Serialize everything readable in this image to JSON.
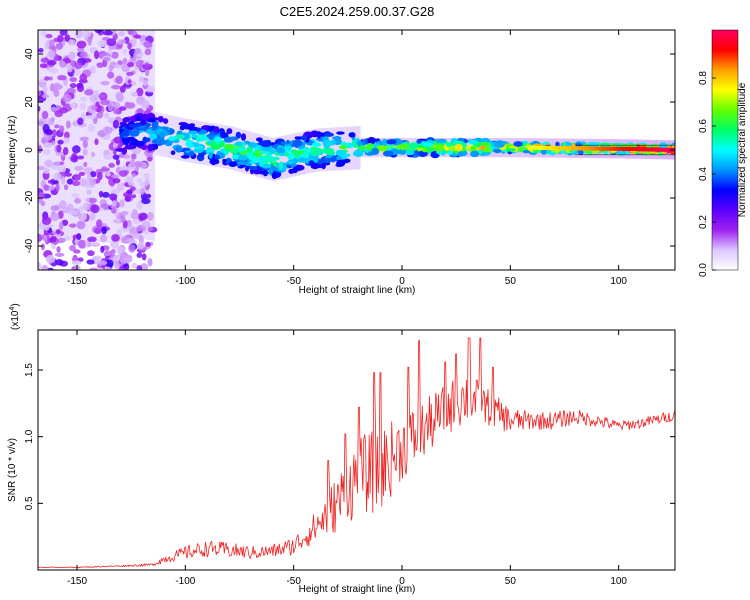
{
  "title": "C2E5.2024.259.00.37.G28",
  "chart_data": [
    {
      "type": "heatmap",
      "xlabel": "Height of straight line (km)",
      "ylabel": "Frequency (Hz)",
      "xlim": [
        -168,
        126
      ],
      "ylim": [
        -50,
        50
      ],
      "x_ticks": [
        -150,
        -100,
        -50,
        0,
        50,
        100
      ],
      "y_ticks": [
        -40,
        -20,
        0,
        20,
        40
      ],
      "grid": false,
      "colorbar": {
        "label": "Normalized spectral amplitude",
        "range": [
          0,
          1
        ],
        "ticks": [
          "0.0",
          "0.2",
          "0.4",
          "0.6",
          "0.8"
        ],
        "colors": [
          "#ffffff",
          "#dcc6ff",
          "#a020f0",
          "#5a00ff",
          "#0000ff",
          "#0096ff",
          "#00ffff",
          "#00ff64",
          "#64ff00",
          "#ffff00",
          "#ffa000",
          "#ff0000",
          "#ff0064"
        ]
      },
      "trend": {
        "x": [
          -168,
          -130,
          -120,
          -100,
          -80,
          -60,
          -40,
          -20,
          0,
          20,
          50,
          100,
          126
        ],
        "center_freq_hz": [
          8,
          6,
          8,
          4,
          1,
          -4,
          0,
          1,
          1,
          1,
          1,
          0.5,
          0
        ],
        "peak_amplitude": [
          0.25,
          0.25,
          0.3,
          0.45,
          0.45,
          0.5,
          0.45,
          0.5,
          0.55,
          0.65,
          0.7,
          0.9,
          1.0
        ]
      }
    },
    {
      "type": "line",
      "xlabel": "Height of straight line (km)",
      "ylabel": "SNR (10 * v/v)",
      "y_multiplier": "(x10^4)",
      "y_multiplier_parts": [
        "(x10",
        "4",
        ")"
      ],
      "xlim": [
        -168,
        126
      ],
      "ylim": [
        0,
        1.8
      ],
      "x_ticks": [
        -150,
        -100,
        -50,
        0,
        50,
        100
      ],
      "y_ticks": [
        "0.5",
        "1.0",
        "1.5"
      ],
      "y_tick_values": [
        0.5,
        1.0,
        1.5
      ],
      "grid": false,
      "series": [
        {
          "color": "#ee2222",
          "x": [
            -168,
            -150,
            -130,
            -115,
            -110,
            -100,
            -90,
            -80,
            -70,
            -60,
            -50,
            -40,
            -30,
            -20,
            -10,
            0,
            10,
            20,
            30,
            40,
            50,
            60,
            70,
            80,
            90,
            100,
            110,
            126
          ],
          "values": [
            0.02,
            0.02,
            0.03,
            0.04,
            0.08,
            0.13,
            0.16,
            0.15,
            0.13,
            0.14,
            0.18,
            0.32,
            0.5,
            0.7,
            0.75,
            0.92,
            1.05,
            1.2,
            1.3,
            1.22,
            1.12,
            1.12,
            1.12,
            1.15,
            1.12,
            1.08,
            1.1,
            1.16
          ],
          "noise": [
            0.003,
            0.003,
            0.005,
            0.01,
            0.03,
            0.05,
            0.06,
            0.06,
            0.05,
            0.05,
            0.07,
            0.12,
            0.22,
            0.3,
            0.32,
            0.25,
            0.22,
            0.2,
            0.2,
            0.14,
            0.1,
            0.07,
            0.07,
            0.06,
            0.05,
            0.04,
            0.04,
            0.04
          ],
          "peaks": [
            {
              "x": -34,
              "y": 0.82
            },
            {
              "x": -26,
              "y": 1.02
            },
            {
              "x": -20,
              "y": 1.22
            },
            {
              "x": -13,
              "y": 1.48
            },
            {
              "x": -10,
              "y": 1.48
            },
            {
              "x": 3,
              "y": 1.52
            },
            {
              "x": 8,
              "y": 1.72
            },
            {
              "x": 20,
              "y": 1.56
            },
            {
              "x": 25,
              "y": 1.62
            },
            {
              "x": 31,
              "y": 1.74
            },
            {
              "x": 36,
              "y": 1.74
            },
            {
              "x": 42,
              "y": 1.52
            }
          ]
        }
      ]
    }
  ]
}
